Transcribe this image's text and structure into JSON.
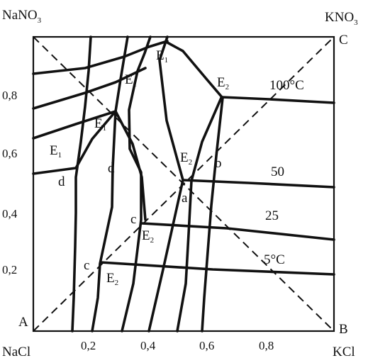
{
  "diagram": {
    "corners": {
      "top_left": "NaNO",
      "top_left_sub": "3",
      "top_right": "KNO",
      "top_right_sub": "3",
      "bottom_left": "NaCl",
      "bottom_right": "KCl"
    },
    "vertex_letters": {
      "A": "A",
      "B": "B",
      "C": "C"
    },
    "y_ticks": [
      "0,2",
      "0,4",
      "0,6",
      "0,8"
    ],
    "x_ticks": [
      "0,2",
      "0,4",
      "0,6",
      "0,8"
    ],
    "isotherms": [
      "100°C",
      "50",
      "25",
      "5°C"
    ],
    "points": {
      "E": "E",
      "sub1": "1",
      "sub2": "2",
      "a": "a",
      "b": "b",
      "c": "c",
      "d": "d"
    }
  }
}
